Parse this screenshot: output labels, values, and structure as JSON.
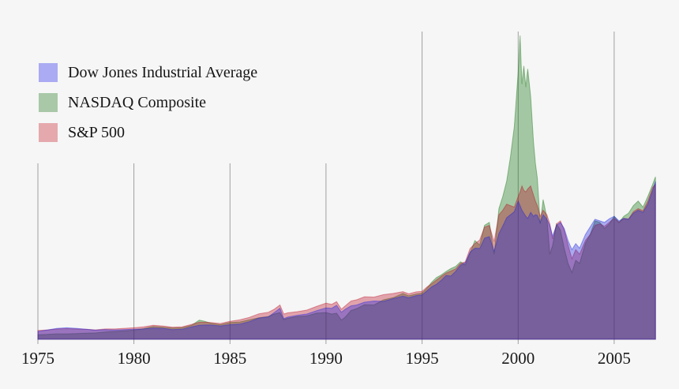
{
  "page": {
    "background": "#f6f6f6"
  },
  "legend": {
    "items": [
      {
        "label": "Dow Jones Industrial Average",
        "swatch_color": "#aaabf2"
      },
      {
        "label": "NASDAQ Composite",
        "swatch_color": "#a9c8a8"
      },
      {
        "label": "S&P 500",
        "swatch_color": "#e5a9ad"
      }
    ]
  },
  "chart_data": {
    "type": "area",
    "title": "",
    "xlabel": "",
    "ylabel": "",
    "legend_position": "top-left",
    "grid": "vertical-gridlines-only",
    "x_ticks": [
      1975,
      1980,
      1985,
      1990,
      1995,
      2000,
      2005
    ],
    "x_tick_labels": [
      "1975",
      "1980",
      "1985",
      "1990",
      "1995",
      "2000",
      "2005"
    ],
    "x_range": [
      1975,
      2007.15
    ],
    "ylim": [
      0,
      102
    ],
    "value_scale": "relative index level; NASDAQ Composite March-2000 peak = 100",
    "axis_color": "#a0a0a0",
    "label_color": "#1a1a1a",
    "x": [
      1975,
      1975.5,
      1976,
      1976.5,
      1977,
      1977.5,
      1978,
      1978.5,
      1979,
      1979.5,
      1980,
      1980.5,
      1981,
      1981.5,
      1982,
      1982.5,
      1983,
      1983.4,
      1983.7,
      1984,
      1984.5,
      1985,
      1985.5,
      1986,
      1986.5,
      1987,
      1987.3,
      1987.6,
      1987.8,
      1988,
      1988.5,
      1989,
      1989.5,
      1990,
      1990.3,
      1990.55,
      1990.8,
      1991,
      1991.3,
      1991.6,
      1992,
      1992.5,
      1993,
      1993.5,
      1994,
      1994.3,
      1994.7,
      1995,
      1995.25,
      1995.5,
      1995.75,
      1996,
      1996.25,
      1996.5,
      1996.75,
      1997,
      1997.25,
      1997.5,
      1997.75,
      1998,
      1998.25,
      1998.5,
      1998.75,
      1999,
      1999.2,
      1999.4,
      1999.6,
      1999.8,
      2000,
      2000.1,
      2000.2,
      2000.3,
      2000.4,
      2000.5,
      2000.65,
      2000.8,
      2000.9,
      2001,
      2001.15,
      2001.3,
      2001.5,
      2001.65,
      2001.8,
      2002,
      2002.2,
      2002.4,
      2002.6,
      2002.8,
      2003,
      2003.2,
      2003.5,
      2003.75,
      2004,
      2004.25,
      2004.5,
      2004.75,
      2005,
      2005.25,
      2005.5,
      2005.75,
      2006,
      2006.25,
      2006.5,
      2006.75,
      2007,
      2007.15
    ],
    "series": [
      {
        "name": "Dow Jones Industrial Average",
        "fill": "rgba(22,28,225,0.35)",
        "stroke": "rgba(22,28,225,0.4)",
        "values": [
          2.6,
          3.1,
          3.6,
          3.8,
          3.6,
          3.3,
          3.0,
          3.2,
          3.1,
          3.2,
          3.3,
          3.4,
          3.7,
          3.6,
          3.2,
          3.3,
          4.1,
          4.6,
          4.7,
          4.7,
          4.4,
          4.8,
          5.0,
          5.8,
          7.0,
          7.4,
          8.8,
          10.2,
          6.8,
          7.3,
          7.9,
          8.3,
          9.4,
          10.3,
          10.2,
          11.2,
          8.9,
          9.9,
          11.0,
          11.3,
          12.2,
          12.6,
          12.5,
          13.4,
          14.2,
          13.7,
          14.4,
          14.6,
          15.9,
          17.3,
          18.1,
          19.4,
          21.0,
          20.8,
          22.4,
          24.4,
          25.2,
          28.7,
          30.0,
          29.9,
          33.3,
          33.8,
          29.0,
          34.8,
          37.3,
          40.0,
          41.0,
          42.0,
          45.5,
          44.0,
          42.5,
          41.5,
          40.5,
          39.8,
          41.8,
          40.5,
          41.0,
          40.8,
          38.5,
          41.0,
          39.5,
          37.5,
          34.0,
          37.5,
          38.5,
          36.5,
          32.5,
          29.5,
          31.5,
          30.0,
          34.5,
          37.0,
          39.5,
          39.0,
          38.5,
          39.7,
          40.5,
          39.0,
          39.8,
          39.5,
          41.5,
          42.5,
          41.8,
          44.5,
          49.0,
          52.0
        ]
      },
      {
        "name": "NASDAQ Composite",
        "fill": "rgba(11,111,8,0.35)",
        "stroke": "rgba(11,111,8,0.4)",
        "values": [
          1.5,
          1.6,
          1.8,
          1.8,
          1.9,
          2.0,
          2.1,
          2.4,
          2.6,
          2.8,
          3.0,
          3.5,
          4.2,
          4.0,
          3.7,
          3.8,
          4.6,
          6.3,
          5.9,
          5.3,
          4.8,
          5.5,
          5.7,
          6.4,
          7.1,
          7.5,
          8.3,
          8.8,
          6.5,
          6.9,
          7.5,
          7.7,
          8.6,
          8.8,
          8.3,
          8.6,
          6.3,
          7.3,
          9.5,
          10.1,
          11.4,
          11.3,
          13.0,
          13.7,
          15.1,
          14.3,
          14.9,
          15.2,
          16.8,
          18.8,
          20.3,
          21.2,
          22.3,
          23.3,
          24.0,
          25.5,
          24.5,
          28.5,
          32.5,
          31.0,
          37.5,
          38.5,
          28.0,
          43.0,
          47.0,
          52.0,
          60.0,
          70.0,
          88.0,
          100.0,
          84.0,
          90.0,
          83.0,
          89.0,
          80.0,
          65.0,
          58.0,
          53.0,
          38.0,
          46.0,
          40.0,
          28.0,
          31.0,
          38.0,
          36.0,
          30.0,
          25.0,
          22.0,
          26.0,
          25.0,
          31.5,
          34.5,
          39.0,
          38.5,
          36.5,
          38.0,
          40.5,
          38.5,
          40.5,
          41.5,
          44.0,
          45.5,
          43.5,
          47.0,
          51.0,
          53.5
        ]
      },
      {
        "name": "S&P 500",
        "fill": "rgba(185,8,31,0.35)",
        "stroke": "rgba(185,8,31,0.4)",
        "values": [
          2.9,
          3.1,
          3.4,
          3.5,
          3.4,
          3.3,
          3.1,
          3.4,
          3.4,
          3.6,
          3.8,
          4.1,
          4.6,
          4.4,
          4.0,
          4.1,
          4.9,
          5.6,
          5.6,
          5.5,
          5.2,
          5.9,
          6.4,
          7.2,
          8.4,
          8.9,
          9.9,
          11.3,
          8.3,
          8.7,
          9.1,
          9.6,
          10.8,
          11.9,
          11.5,
          12.4,
          9.9,
          11.0,
          12.6,
          13.0,
          14.0,
          13.9,
          14.7,
          15.1,
          15.7,
          15.0,
          15.6,
          15.8,
          17.2,
          18.3,
          19.5,
          20.7,
          21.8,
          22.5,
          23.2,
          25.0,
          25.5,
          29.9,
          31.5,
          32.7,
          36.9,
          37.5,
          32.1,
          41.0,
          42.5,
          44.5,
          44.0,
          43.5,
          47.0,
          48.5,
          50.5,
          49.0,
          48.5,
          49.5,
          50.5,
          47.5,
          45.5,
          44.0,
          40.5,
          42.5,
          41.0,
          38.0,
          33.0,
          38.0,
          39.0,
          36.0,
          31.0,
          26.5,
          29.5,
          28.0,
          32.5,
          34.5,
          37.5,
          38.0,
          37.2,
          38.5,
          39.8,
          38.5,
          39.8,
          39.6,
          42.0,
          43.0,
          42.3,
          45.5,
          50.0,
          51.0
        ]
      }
    ]
  }
}
